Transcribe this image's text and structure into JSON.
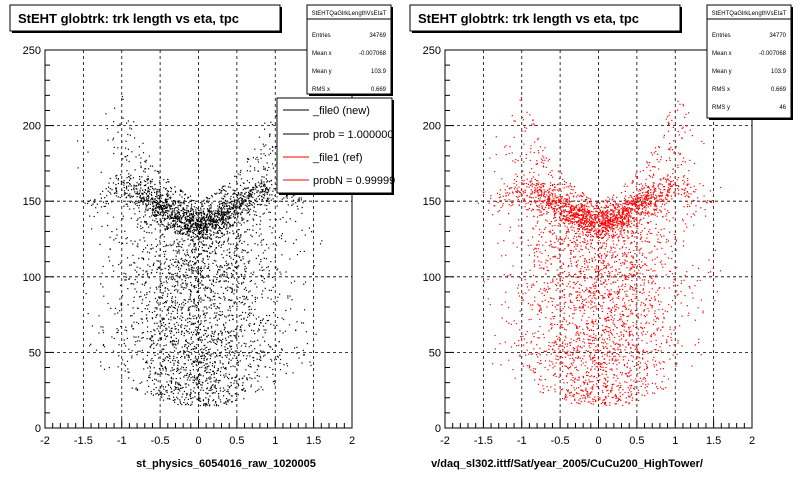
{
  "footer_left": "st_physics_6054016_raw_1020005",
  "footer_right": "v/daq_sl302.ittf/Sat/year_2005/CuCu200_HighTower/",
  "colors": {
    "new": "#000000",
    "ref": "#ff0000",
    "frame": "#000000",
    "grid": "#000000"
  },
  "legend": {
    "entries": [
      {
        "label": "_file0 (new)",
        "color": "#000000"
      },
      {
        "label": "prob = 1.000000",
        "color": "#000000"
      },
      {
        "label": "_file1 (ref)",
        "color": "#ff0000"
      },
      {
        "label": "probN = 0.99999",
        "color": "#ff0000"
      }
    ]
  },
  "chart_data": [
    {
      "type": "scatter",
      "title": "StEHT globtrk: trk length vs eta, tpc",
      "xlim": [
        -2,
        2
      ],
      "ylim": [
        0,
        250
      ],
      "x_ticks": [
        "-2",
        "-1.5",
        "-1",
        "-0.5",
        "0",
        "0.5",
        "1",
        "1.5",
        "2"
      ],
      "y_ticks": [
        "0",
        "50",
        "100",
        "150",
        "200",
        "250"
      ],
      "grid": true,
      "legend_position": "top-right",
      "series_color": "#000000",
      "stats": {
        "name": "StEHTQaGlrkLengthVsEtaT",
        "rows": [
          {
            "label": "Entries",
            "value": "34769"
          },
          {
            "label": "Mean x",
            "value": "-0.007068"
          },
          {
            "label": "Mean y",
            "value": "103.9"
          },
          {
            "label": "RMS x",
            "value": "0.669"
          }
        ]
      },
      "density_profile": {
        "eta": [
          -1.4,
          -1.0,
          -0.6,
          -0.3,
          0,
          0.3,
          0.6,
          1.0,
          1.4
        ],
        "band_min_length": [
          40,
          30,
          20,
          15,
          15,
          15,
          20,
          30,
          40
        ],
        "band_max_length": [
          200,
          220,
          175,
          160,
          150,
          160,
          175,
          220,
          200
        ],
        "ridge_length": [
          150,
          160,
          150,
          140,
          135,
          140,
          150,
          160,
          150
        ]
      }
    },
    {
      "type": "scatter",
      "title": "StEHT globtrk: trk length vs eta, tpc",
      "xlim": [
        -2,
        2
      ],
      "ylim": [
        0,
        250
      ],
      "x_ticks": [
        "-2",
        "-1.5",
        "-1",
        "-0.5",
        "0",
        "0.5",
        "1",
        "1.5",
        "2"
      ],
      "y_ticks": [
        "0",
        "50",
        "100",
        "150",
        "200",
        "250"
      ],
      "grid": true,
      "series_color": "#ff0000",
      "stats": {
        "name": "StEHTQaGlrkLengthVsEtaT",
        "rows": [
          {
            "label": "Entries",
            "value": "34770"
          },
          {
            "label": "Mean x",
            "value": "-0.007068"
          },
          {
            "label": "Mean y",
            "value": "103.9"
          },
          {
            "label": "RMS x",
            "value": "0.669"
          },
          {
            "label": "RMS y",
            "value": "46"
          }
        ]
      },
      "density_profile": {
        "eta": [
          -1.4,
          -1.0,
          -0.6,
          -0.3,
          0,
          0.3,
          0.6,
          1.0,
          1.4
        ],
        "band_min_length": [
          40,
          30,
          20,
          15,
          15,
          15,
          20,
          30,
          40
        ],
        "band_max_length": [
          200,
          220,
          175,
          160,
          150,
          160,
          175,
          220,
          200
        ],
        "ridge_length": [
          150,
          160,
          150,
          140,
          135,
          140,
          150,
          160,
          150
        ]
      }
    }
  ]
}
